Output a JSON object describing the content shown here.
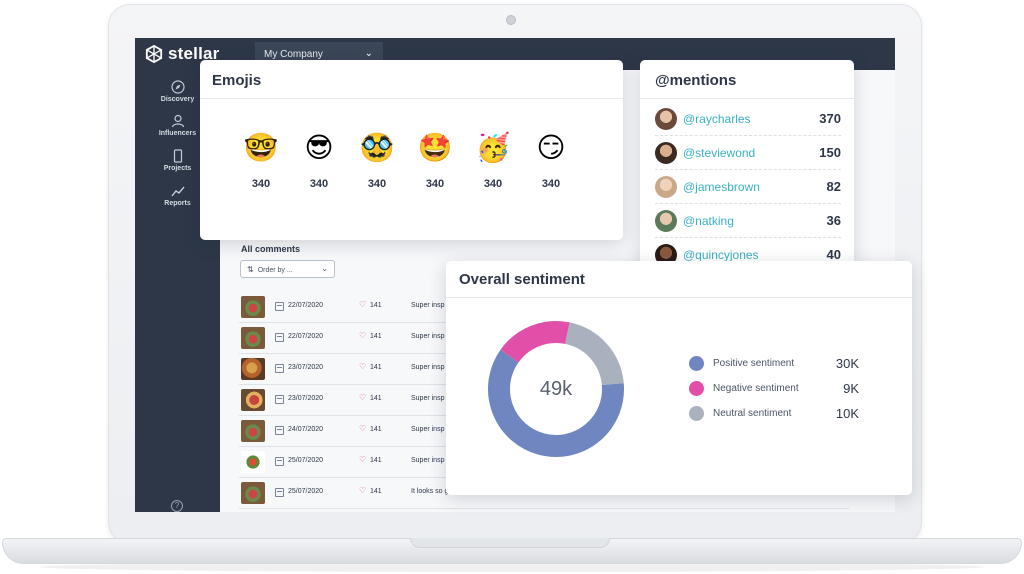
{
  "app": {
    "logo_text": "stellar",
    "company_select": "My Company"
  },
  "sidebar": {
    "items": [
      {
        "label": "Discovery",
        "icon": "compass-icon"
      },
      {
        "label": "Influencers",
        "icon": "user-icon"
      },
      {
        "label": "Projects",
        "icon": "phone-icon"
      },
      {
        "label": "Reports",
        "icon": "trend-icon"
      }
    ],
    "help": "?"
  },
  "comments": {
    "heading": "All comments",
    "order_by": "Order by ...",
    "rows": [
      {
        "date": "22/07/2020",
        "likes": "141",
        "text": "Super insp"
      },
      {
        "date": "22/07/2020",
        "likes": "141",
        "text": "Super insp"
      },
      {
        "date": "23/07/2020",
        "likes": "141",
        "text": "Super insp"
      },
      {
        "date": "23/07/2020",
        "likes": "141",
        "text": "Super insp"
      },
      {
        "date": "24/07/2020",
        "likes": "141",
        "text": "Super insp"
      },
      {
        "date": "25/07/2020",
        "likes": "141",
        "text": "Super insp"
      },
      {
        "date": "25/07/2020",
        "likes": "141",
        "text": "It looks so good! I will try tonight this wonderful recipe."
      }
    ]
  },
  "emojis": {
    "title": "Emojis",
    "items": [
      {
        "emoji": "🤓",
        "count": "340"
      },
      {
        "emoji": "😎",
        "count": "340"
      },
      {
        "emoji": "🥸",
        "count": "340"
      },
      {
        "emoji": "🤩",
        "count": "340"
      },
      {
        "emoji": "🥳",
        "count": "340"
      },
      {
        "emoji": "😏",
        "count": "340"
      }
    ]
  },
  "mentions": {
    "title": "@mentions",
    "items": [
      {
        "handle": "@raycharles",
        "count": "370"
      },
      {
        "handle": "@steviewond",
        "count": "150"
      },
      {
        "handle": "@jamesbrown",
        "count": "82"
      },
      {
        "handle": "@natking",
        "count": "36"
      },
      {
        "handle": "@quincyjones",
        "count": "40"
      }
    ]
  },
  "sentiment": {
    "title": "Overall sentiment",
    "center_label": "49k",
    "legend": [
      {
        "label": "Positive sentiment",
        "value": "30K",
        "color": "#6f86c0"
      },
      {
        "label": "Negative sentiment",
        "value": "9K",
        "color": "#e24fa8"
      },
      {
        "label": "Neutral sentiment",
        "value": "10K",
        "color": "#a9b1bf"
      }
    ]
  },
  "chart_data": {
    "type": "pie",
    "categories": [
      "Positive sentiment",
      "Negative sentiment",
      "Neutral sentiment"
    ],
    "values": [
      30,
      9,
      10
    ],
    "colors": [
      "#6f86c0",
      "#e24fa8",
      "#a9b1bf"
    ],
    "title": "Overall sentiment"
  }
}
